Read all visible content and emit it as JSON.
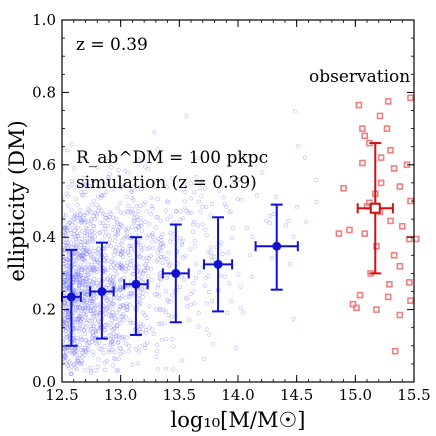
{
  "chart_data": {
    "type": "scatter",
    "xlabel": "log₁₀[M/M☉]",
    "ylabel": "ellipticity (DM)",
    "xlim": [
      12.5,
      15.5
    ],
    "ylim": [
      0.0,
      1.0
    ],
    "xticks": [
      "12.5",
      "13.0",
      "13.5",
      "14.0",
      "14.5",
      "15.0",
      "15.5"
    ],
    "yticks": [
      "0.0",
      "0.2",
      "0.4",
      "0.6",
      "0.8",
      "1.0"
    ],
    "grid": false,
    "annotations": {
      "redshift": "z = 0.39",
      "observation": "observation",
      "aperture": "R_ab^DM = 100 pkpc",
      "simulation": "simulation (z = 0.39)"
    },
    "colors": {
      "simulation": "#1010d0",
      "simulation_cloud": "#8080ff",
      "observation": "#d01010",
      "observation_points": "#f08080"
    },
    "simulation_binned": [
      {
        "x": 12.58,
        "y": 0.235,
        "xerr": 0.08,
        "ylow": 0.1,
        "yhigh": 0.365
      },
      {
        "x": 12.84,
        "y": 0.25,
        "xerr": 0.1,
        "ylow": 0.12,
        "yhigh": 0.385
      },
      {
        "x": 13.13,
        "y": 0.27,
        "xerr": 0.1,
        "ylow": 0.13,
        "yhigh": 0.4
      },
      {
        "x": 13.47,
        "y": 0.3,
        "xerr": 0.11,
        "ylow": 0.165,
        "yhigh": 0.435
      },
      {
        "x": 13.83,
        "y": 0.325,
        "xerr": 0.12,
        "ylow": 0.195,
        "yhigh": 0.455
      },
      {
        "x": 14.33,
        "y": 0.375,
        "xerr": 0.18,
        "ylow": 0.255,
        "yhigh": 0.49
      }
    ],
    "observation_mean": {
      "x": 15.17,
      "y": 0.48,
      "xerr": 0.15,
      "ylow": 0.3,
      "yhigh": 0.66
    },
    "observation_points": [
      [
        15.28,
        0.775
      ],
      [
        15.47,
        0.785
      ],
      [
        15.03,
        0.765
      ],
      [
        15.21,
        0.735
      ],
      [
        15.06,
        0.7
      ],
      [
        15.27,
        0.7
      ],
      [
        15.08,
        0.68
      ],
      [
        15.12,
        0.66
      ],
      [
        15.3,
        0.64
      ],
      [
        15.22,
        0.62
      ],
      [
        15.06,
        0.605
      ],
      [
        15.33,
        0.59
      ],
      [
        15.44,
        0.6
      ],
      [
        15.22,
        0.55
      ],
      [
        15.38,
        0.54
      ],
      [
        15.17,
        0.52
      ],
      [
        14.9,
        0.535
      ],
      [
        15.47,
        0.5
      ],
      [
        15.12,
        0.495
      ],
      [
        15.1,
        0.485
      ],
      [
        15.21,
        0.47
      ],
      [
        15.3,
        0.445
      ],
      [
        15.4,
        0.43
      ],
      [
        14.95,
        0.42
      ],
      [
        15.08,
        0.41
      ],
      [
        14.86,
        0.41
      ],
      [
        15.46,
        0.395
      ],
      [
        15.52,
        0.395
      ],
      [
        15.18,
        0.375
      ],
      [
        15.33,
        0.35
      ],
      [
        15.38,
        0.32
      ],
      [
        15.13,
        0.3
      ],
      [
        15.46,
        0.275
      ],
      [
        15.04,
        0.24
      ],
      [
        15.28,
        0.235
      ],
      [
        14.98,
        0.215
      ],
      [
        15.18,
        0.2
      ],
      [
        15.38,
        0.185
      ],
      [
        15.47,
        0.225
      ],
      [
        15.34,
        0.085
      ],
      [
        15.01,
        0.205
      ],
      [
        15.29,
        0.27
      ]
    ]
  }
}
